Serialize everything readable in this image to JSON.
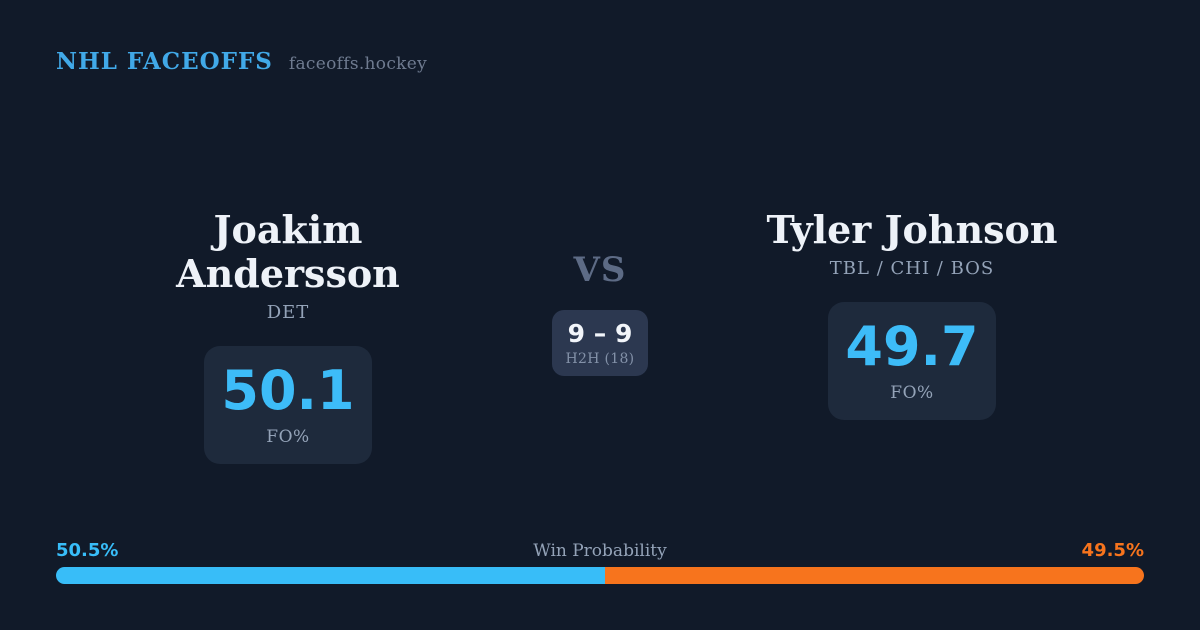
{
  "header": {
    "brand": "NHL FACEOFFS",
    "site": "faceoffs.hockey"
  },
  "players": {
    "left": {
      "name": "Joakim Andersson",
      "teams": "DET",
      "fo_pct": "50.1",
      "stat_label": "FO%"
    },
    "right": {
      "name": "Tyler Johnson",
      "teams": "TBL / CHI / BOS",
      "fo_pct": "49.7",
      "stat_label": "FO%"
    }
  },
  "versus": {
    "label": "VS",
    "h2h_score": "9 – 9",
    "h2h_label": "H2H (18)"
  },
  "win_probability": {
    "title": "Win Probability",
    "left": {
      "text": "50.5%",
      "value": 50.5,
      "color": "#38bdf8"
    },
    "right": {
      "text": "49.5%",
      "value": 49.5,
      "color": "#f7741d"
    }
  },
  "colors": {
    "background": "#111a29",
    "panel": "#1e2a3c",
    "panel_light": "#2c3850",
    "brand_blue": "#41a9e8",
    "stat_blue": "#3dbcf8",
    "accent_orange": "#f7741d",
    "text_primary": "#eef2f8",
    "text_muted": "#94a3b8",
    "text_dim": "#5d6b85"
  }
}
